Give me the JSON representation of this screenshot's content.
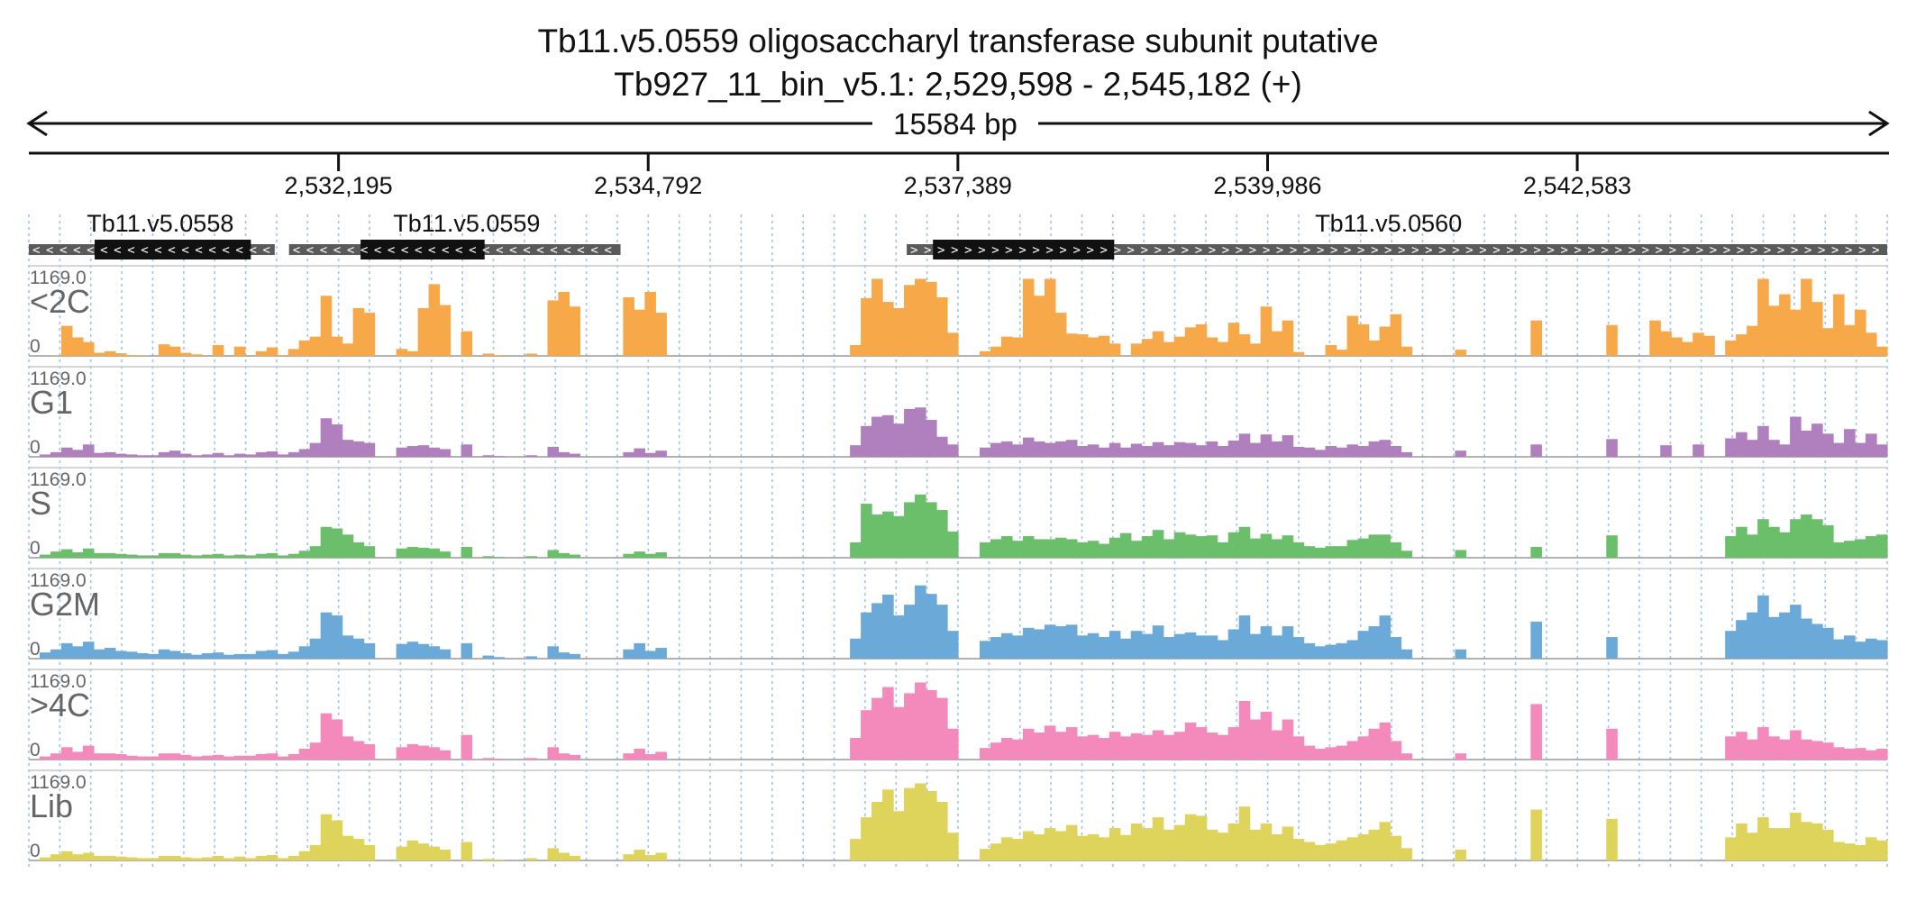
{
  "title_line1": "Tb11.v5.0559  oligosaccharyl transferase subunit  putative",
  "title_line2": "Tb927_11_bin_v5.1: 2,529,598 - 2,545,182 (+)",
  "span_label": "15584 bp",
  "chart_data": {
    "type": "area",
    "region": {
      "chrom": "Tb927_11_bin_v5.1",
      "start": 2529598,
      "end": 2545182,
      "strand": "+"
    },
    "ticks": [
      {
        "pos": 2532195,
        "label": "2,532,195"
      },
      {
        "pos": 2534792,
        "label": "2,534,792"
      },
      {
        "pos": 2537389,
        "label": "2,537,389"
      },
      {
        "pos": 2539986,
        "label": "2,539,986"
      },
      {
        "pos": 2542583,
        "label": "2,542,583"
      }
    ],
    "genes": [
      {
        "name": "Tb11.v5.0558",
        "start": 2529598,
        "end": 2531660,
        "cds_start": 2530150,
        "cds_end": 2531460,
        "strand": "-",
        "label_pos": 2530700
      },
      {
        "name": "Tb11.v5.0559",
        "start": 2531780,
        "end": 2534560,
        "cds_start": 2532380,
        "cds_end": 2533420,
        "strand": "-",
        "label_pos": 2533270
      },
      {
        "name": "Tb11.v5.0560",
        "start": 2536960,
        "end": 2545182,
        "cds_start": 2537180,
        "cds_end": 2538700,
        "strand": "+",
        "label_pos": 2541000
      }
    ],
    "ylim": [
      0,
      1169
    ],
    "ymax_label": "1169.0",
    "ymin_label": "0",
    "series": [
      {
        "name": "<2C",
        "color": "#f7a949",
        "values": [
          0,
          0,
          5,
          390,
          240,
          180,
          40,
          60,
          35,
          10,
          5,
          0,
          150,
          120,
          40,
          20,
          0,
          140,
          0,
          120,
          0,
          60,
          110,
          10,
          90,
          200,
          250,
          780,
          250,
          160,
          620,
          560,
          0,
          0,
          90,
          60,
          620,
          930,
          660,
          0,
          320,
          0,
          30,
          10,
          0,
          0,
          30,
          0,
          720,
          830,
          640,
          0,
          0,
          0,
          0,
          760,
          600,
          830,
          560,
          0,
          0,
          0,
          0,
          0,
          0,
          0,
          0,
          0,
          0,
          0,
          0,
          0,
          0,
          0,
          0,
          0,
          140,
          750,
          1000,
          700,
          620,
          920,
          1000,
          960,
          760,
          300,
          0,
          0,
          60,
          120,
          250,
          240,
          1000,
          780,
          1000,
          560,
          290,
          280,
          240,
          260,
          160,
          0,
          160,
          220,
          320,
          180,
          250,
          370,
          410,
          240,
          180,
          430,
          280,
          160,
          640,
          320,
          460,
          50,
          0,
          0,
          140,
          80,
          520,
          410,
          200,
          380,
          540,
          120,
          0,
          0,
          0,
          0,
          80,
          0,
          0,
          0,
          0,
          0,
          0,
          460,
          0,
          0,
          0,
          0,
          0,
          0,
          400,
          0,
          0,
          0,
          460,
          320,
          240,
          180,
          300,
          260,
          0,
          200,
          280,
          390,
          1000,
          650,
          800,
          600,
          1000,
          700,
          360,
          800,
          400,
          600,
          300,
          120
        ]
      },
      {
        "name": "G1",
        "color": "#b07fbe",
        "values": [
          0,
          30,
          60,
          120,
          90,
          160,
          50,
          60,
          40,
          30,
          20,
          20,
          60,
          80,
          40,
          20,
          30,
          50,
          20,
          40,
          30,
          60,
          70,
          30,
          60,
          100,
          180,
          500,
          420,
          220,
          200,
          180,
          0,
          0,
          120,
          140,
          150,
          120,
          100,
          0,
          160,
          0,
          20,
          10,
          0,
          0,
          20,
          0,
          130,
          60,
          40,
          0,
          0,
          0,
          0,
          60,
          110,
          50,
          80,
          0,
          0,
          0,
          0,
          0,
          0,
          0,
          0,
          0,
          0,
          0,
          0,
          0,
          0,
          0,
          0,
          0,
          150,
          400,
          520,
          540,
          430,
          620,
          640,
          480,
          260,
          160,
          0,
          0,
          120,
          180,
          200,
          160,
          250,
          200,
          180,
          200,
          220,
          140,
          160,
          120,
          180,
          120,
          170,
          140,
          190,
          150,
          190,
          180,
          150,
          200,
          140,
          210,
          300,
          180,
          290,
          200,
          280,
          130,
          120,
          90,
          140,
          120,
          160,
          140,
          200,
          220,
          140,
          60,
          0,
          0,
          0,
          0,
          80,
          0,
          0,
          0,
          0,
          0,
          0,
          160,
          0,
          0,
          0,
          0,
          0,
          0,
          230,
          0,
          0,
          0,
          0,
          150,
          0,
          0,
          160,
          0,
          0,
          240,
          320,
          220,
          400,
          220,
          160,
          520,
          340,
          430,
          300,
          180,
          360,
          180,
          300,
          160
        ]
      },
      {
        "name": "S",
        "color": "#6bbf6b",
        "values": [
          0,
          40,
          80,
          110,
          70,
          120,
          60,
          60,
          50,
          40,
          30,
          30,
          60,
          60,
          40,
          30,
          40,
          50,
          30,
          40,
          30,
          50,
          60,
          30,
          50,
          90,
          150,
          400,
          380,
          300,
          200,
          150,
          0,
          0,
          120,
          140,
          130,
          120,
          80,
          0,
          140,
          0,
          20,
          10,
          0,
          0,
          20,
          0,
          100,
          60,
          40,
          0,
          0,
          0,
          0,
          50,
          80,
          50,
          70,
          0,
          0,
          0,
          0,
          0,
          0,
          0,
          0,
          0,
          0,
          0,
          0,
          0,
          0,
          0,
          0,
          0,
          200,
          700,
          560,
          600,
          540,
          720,
          820,
          720,
          620,
          340,
          0,
          0,
          200,
          240,
          280,
          220,
          280,
          240,
          240,
          260,
          240,
          200,
          220,
          180,
          260,
          320,
          220,
          280,
          360,
          240,
          330,
          300,
          280,
          290,
          200,
          330,
          400,
          250,
          310,
          240,
          290,
          200,
          150,
          130,
          150,
          150,
          230,
          250,
          300,
          300,
          200,
          90,
          0,
          0,
          0,
          0,
          100,
          0,
          0,
          0,
          0,
          0,
          0,
          140,
          0,
          0,
          0,
          0,
          0,
          0,
          290,
          0,
          0,
          0,
          0,
          0,
          0,
          0,
          0,
          0,
          0,
          280,
          400,
          300,
          500,
          400,
          330,
          500,
          560,
          500,
          420,
          200,
          220,
          240,
          280,
          300
        ]
      },
      {
        "name": "G2M",
        "color": "#6aa9d8",
        "values": [
          0,
          80,
          120,
          200,
          160,
          220,
          120,
          140,
          100,
          90,
          70,
          60,
          120,
          100,
          70,
          50,
          70,
          80,
          50,
          60,
          60,
          100,
          110,
          60,
          90,
          160,
          260,
          600,
          560,
          300,
          260,
          200,
          0,
          0,
          190,
          220,
          190,
          160,
          120,
          0,
          200,
          0,
          40,
          20,
          0,
          0,
          30,
          0,
          160,
          80,
          60,
          0,
          0,
          0,
          0,
          120,
          200,
          100,
          140,
          0,
          0,
          0,
          0,
          0,
          0,
          0,
          0,
          0,
          0,
          0,
          0,
          0,
          0,
          0,
          0,
          0,
          260,
          600,
          720,
          830,
          560,
          700,
          950,
          840,
          700,
          360,
          0,
          0,
          230,
          280,
          330,
          300,
          400,
          380,
          440,
          420,
          440,
          300,
          330,
          280,
          360,
          260,
          360,
          320,
          430,
          280,
          320,
          340,
          300,
          300,
          240,
          380,
          560,
          320,
          420,
          300,
          420,
          280,
          200,
          160,
          180,
          200,
          240,
          360,
          420,
          560,
          280,
          120,
          0,
          0,
          0,
          0,
          120,
          0,
          0,
          0,
          0,
          0,
          0,
          480,
          0,
          0,
          0,
          0,
          0,
          0,
          280,
          0,
          0,
          0,
          0,
          0,
          0,
          0,
          0,
          0,
          0,
          360,
          500,
          600,
          820,
          540,
          600,
          700,
          520,
          450,
          400,
          250,
          300,
          220,
          260,
          240
        ]
      },
      {
        "name": ">4C",
        "color": "#f489bb",
        "values": [
          0,
          40,
          80,
          160,
          100,
          180,
          80,
          80,
          70,
          50,
          40,
          40,
          80,
          80,
          60,
          40,
          50,
          60,
          40,
          50,
          50,
          70,
          80,
          40,
          70,
          140,
          220,
          600,
          520,
          300,
          240,
          200,
          0,
          0,
          160,
          200,
          180,
          160,
          120,
          0,
          320,
          0,
          20,
          10,
          0,
          0,
          20,
          0,
          160,
          80,
          60,
          0,
          0,
          0,
          0,
          80,
          140,
          70,
          100,
          0,
          0,
          0,
          0,
          0,
          0,
          0,
          0,
          0,
          0,
          0,
          0,
          0,
          0,
          0,
          0,
          0,
          280,
          640,
          800,
          940,
          680,
          860,
          1000,
          900,
          800,
          400,
          0,
          0,
          150,
          220,
          280,
          260,
          400,
          350,
          440,
          360,
          420,
          300,
          320,
          280,
          360,
          300,
          340,
          320,
          380,
          320,
          360,
          480,
          420,
          350,
          320,
          420,
          760,
          520,
          620,
          380,
          520,
          300,
          180,
          140,
          160,
          180,
          240,
          300,
          400,
          480,
          240,
          80,
          0,
          0,
          0,
          0,
          80,
          0,
          0,
          0,
          0,
          0,
          0,
          720,
          0,
          0,
          0,
          0,
          0,
          0,
          400,
          0,
          0,
          0,
          0,
          0,
          0,
          0,
          0,
          0,
          0,
          300,
          360,
          260,
          420,
          300,
          260,
          380,
          260,
          240,
          220,
          160,
          140,
          150,
          120,
          140
        ]
      },
      {
        "name": "Lib",
        "color": "#dfd45b",
        "values": [
          0,
          40,
          80,
          120,
          80,
          100,
          60,
          60,
          50,
          40,
          30,
          30,
          60,
          60,
          40,
          30,
          40,
          60,
          30,
          50,
          30,
          60,
          70,
          30,
          60,
          120,
          200,
          600,
          520,
          320,
          280,
          200,
          0,
          0,
          180,
          260,
          220,
          180,
          140,
          0,
          240,
          0,
          20,
          10,
          0,
          0,
          30,
          0,
          160,
          100,
          60,
          0,
          0,
          0,
          0,
          80,
          140,
          70,
          100,
          0,
          0,
          0,
          0,
          0,
          0,
          0,
          0,
          0,
          0,
          0,
          0,
          0,
          0,
          0,
          0,
          0,
          280,
          560,
          760,
          920,
          640,
          940,
          1000,
          900,
          760,
          360,
          0,
          0,
          150,
          220,
          300,
          280,
          380,
          340,
          420,
          380,
          460,
          320,
          340,
          300,
          420,
          330,
          480,
          420,
          560,
          400,
          460,
          600,
          580,
          400,
          360,
          480,
          700,
          400,
          480,
          340,
          440,
          280,
          240,
          200,
          220,
          260,
          300,
          340,
          400,
          500,
          320,
          160,
          0,
          0,
          0,
          0,
          140,
          0,
          0,
          0,
          0,
          0,
          0,
          660,
          0,
          0,
          0,
          0,
          0,
          0,
          540,
          0,
          0,
          0,
          0,
          0,
          0,
          0,
          0,
          0,
          0,
          300,
          480,
          360,
          560,
          420,
          420,
          620,
          500,
          480,
          400,
          240,
          220,
          200,
          300,
          260
        ]
      }
    ]
  }
}
